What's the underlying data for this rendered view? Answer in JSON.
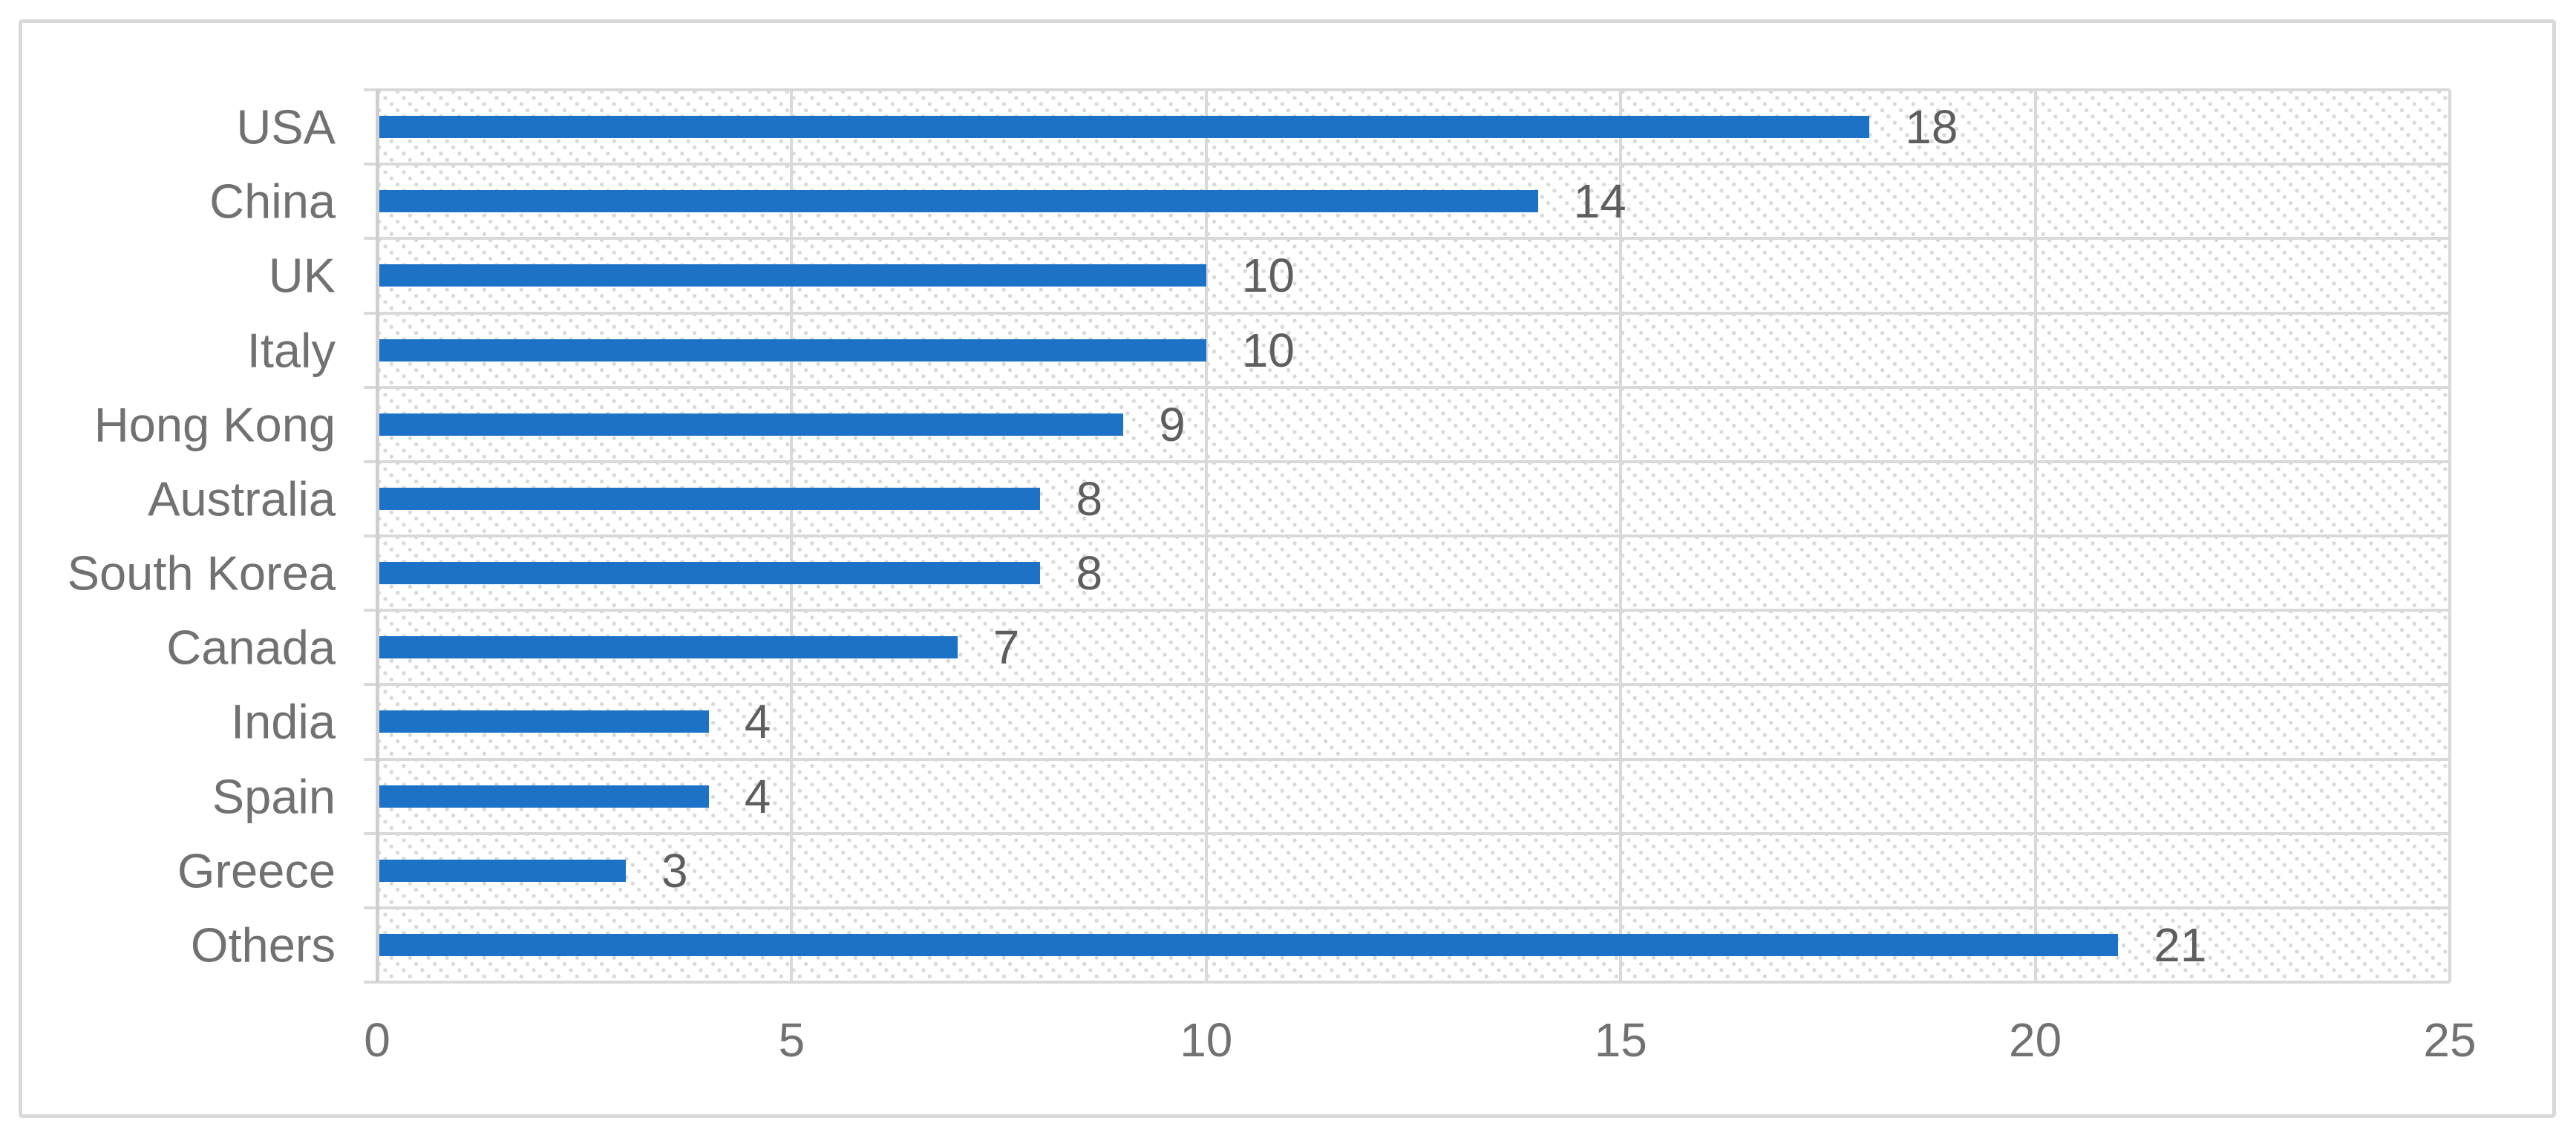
{
  "chart_data": {
    "type": "bar",
    "orientation": "horizontal",
    "title": "",
    "xlabel": "",
    "ylabel": "",
    "categories": [
      "USA",
      "China",
      "UK",
      "Italy",
      "Hong Kong",
      "Australia",
      "South Korea",
      "Canada",
      "India",
      "Spain",
      "Greece",
      "Others"
    ],
    "values": [
      18,
      14,
      10,
      10,
      9,
      8,
      8,
      7,
      4,
      4,
      3,
      21
    ],
    "data_labels": [
      "18",
      "14",
      "10",
      "10",
      "9",
      "8",
      "8",
      "7",
      "4",
      "4",
      "3",
      "21"
    ],
    "xlim": [
      0,
      25
    ],
    "x_ticks": [
      0,
      5,
      10,
      15,
      20,
      25
    ],
    "x_tick_labels": [
      "0",
      "5",
      "10",
      "15",
      "20",
      "25"
    ],
    "grid": true,
    "legend": false,
    "plot_area_fill": "dotted-downward-diagonal-hatch",
    "colors": {
      "bar": "#1c72c7",
      "gridline": "#d9d9d9",
      "hatch_dot": "#d9d9d9",
      "category_axis_line": "#cfcfcf",
      "frame_border": "#d9d9d9",
      "tick_label_text": "#717171",
      "data_label_text": "#5e5e5e",
      "background": "#ffffff"
    }
  }
}
